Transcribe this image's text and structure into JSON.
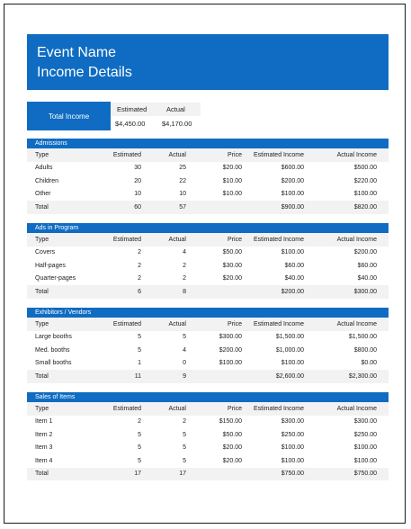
{
  "header": {
    "line1": "Event Name",
    "line2": "Income Details"
  },
  "summary": {
    "label": "Total Income",
    "est_header": "Estimated",
    "act_header": "Actual",
    "est_value": "$4,450.00",
    "act_value": "$4,170.00"
  },
  "columns": {
    "type": "Type",
    "estimated": "Estimated",
    "actual": "Actual",
    "price": "Price",
    "est_income": "Estimated Income",
    "act_income": "Actual Income"
  },
  "sections": [
    {
      "title": "Admissions",
      "rows": [
        {
          "type": "Adults",
          "est": "30",
          "act": "25",
          "price": "$20.00",
          "ei": "$600.00",
          "ai": "$500.00"
        },
        {
          "type": "Children",
          "est": "20",
          "act": "22",
          "price": "$10.00",
          "ei": "$200.00",
          "ai": "$220.00"
        },
        {
          "type": "Other",
          "est": "10",
          "act": "10",
          "price": "$10.00",
          "ei": "$100.00",
          "ai": "$100.00"
        }
      ],
      "total": {
        "type": "Total",
        "est": "60",
        "act": "57",
        "price": "",
        "ei": "$900.00",
        "ai": "$820.00"
      }
    },
    {
      "title": "Ads in Program",
      "rows": [
        {
          "type": "Covers",
          "est": "2",
          "act": "4",
          "price": "$50.00",
          "ei": "$100.00",
          "ai": "$200.00"
        },
        {
          "type": "Half-pages",
          "est": "2",
          "act": "2",
          "price": "$30.00",
          "ei": "$60.00",
          "ai": "$60.00"
        },
        {
          "type": "Quarter-pages",
          "est": "2",
          "act": "2",
          "price": "$20.00",
          "ei": "$40.00",
          "ai": "$40.00"
        }
      ],
      "total": {
        "type": "Total",
        "est": "6",
        "act": "8",
        "price": "",
        "ei": "$200.00",
        "ai": "$300.00"
      }
    },
    {
      "title": "Exhibitors / Vendors",
      "rows": [
        {
          "type": "Large booths",
          "est": "5",
          "act": "5",
          "price": "$300.00",
          "ei": "$1,500.00",
          "ai": "$1,500.00"
        },
        {
          "type": "Med. booths",
          "est": "5",
          "act": "4",
          "price": "$200.00",
          "ei": "$1,000.00",
          "ai": "$800.00"
        },
        {
          "type": "Small booths",
          "est": "1",
          "act": "0",
          "price": "$100.00",
          "ei": "$100.00",
          "ai": "$0.00"
        }
      ],
      "total": {
        "type": "Total",
        "est": "11",
        "act": "9",
        "price": "",
        "ei": "$2,600.00",
        "ai": "$2,300.00"
      }
    },
    {
      "title": "Sales of Items",
      "rows": [
        {
          "type": "Item 1",
          "est": "2",
          "act": "2",
          "price": "$150.00",
          "ei": "$300.00",
          "ai": "$300.00"
        },
        {
          "type": "Item 2",
          "est": "5",
          "act": "5",
          "price": "$50.00",
          "ei": "$250.00",
          "ai": "$250.00"
        },
        {
          "type": "Item 3",
          "est": "5",
          "act": "5",
          "price": "$20.00",
          "ei": "$100.00",
          "ai": "$100.00"
        },
        {
          "type": "Item 4",
          "est": "5",
          "act": "5",
          "price": "$20.00",
          "ei": "$100.00",
          "ai": "$100.00"
        }
      ],
      "total": {
        "type": "Total",
        "est": "17",
        "act": "17",
        "price": "",
        "ei": "$750.00",
        "ai": "$750.00"
      }
    }
  ]
}
